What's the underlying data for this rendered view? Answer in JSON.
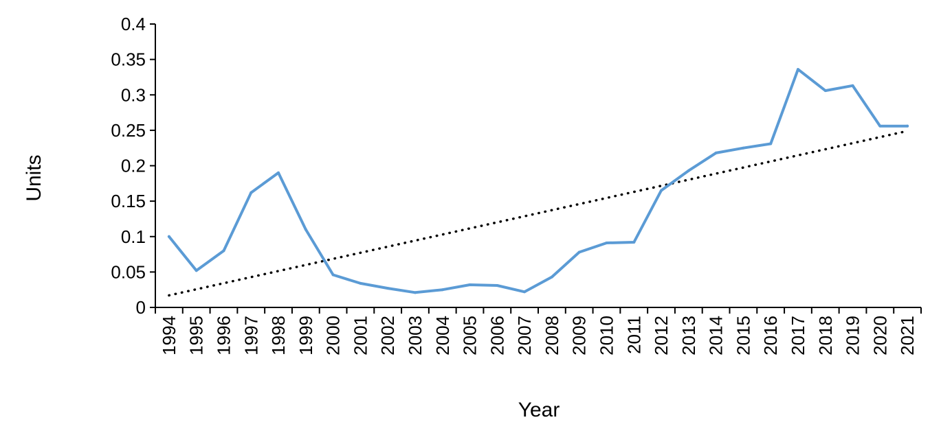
{
  "chart_data": {
    "type": "line",
    "title": "",
    "xlabel": "Year",
    "ylabel": "Units",
    "ylim": [
      0,
      0.4
    ],
    "yticks": [
      0,
      0.05,
      0.1,
      0.15,
      0.2,
      0.25,
      0.3,
      0.35,
      0.4
    ],
    "ytick_labels": [
      "0",
      "0.05",
      "0.1",
      "0.15",
      "0.2",
      "0.25",
      "0.3",
      "0.35",
      "0.4"
    ],
    "grid": false,
    "legend": "none",
    "categories": [
      "1994",
      "1995",
      "1996",
      "1997",
      "1998",
      "1999",
      "2000",
      "2001",
      "2002",
      "2003",
      "2004",
      "2005",
      "2006",
      "2007",
      "2008",
      "2009",
      "2010",
      "2011",
      "2012",
      "2013",
      "2014",
      "2015",
      "2016",
      "2017",
      "2018",
      "2019",
      "2020",
      "2021"
    ],
    "series": [
      {
        "name": "Units",
        "color": "#5b9bd5",
        "values": [
          0.1,
          0.052,
          0.08,
          0.162,
          0.19,
          0.11,
          0.046,
          0.034,
          0.027,
          0.021,
          0.025,
          0.032,
          0.031,
          0.022,
          0.043,
          0.078,
          0.091,
          0.092,
          0.165,
          0.193,
          0.218,
          0.225,
          0.231,
          0.336,
          0.306,
          0.313,
          0.256,
          0.256
        ]
      }
    ],
    "trendline": {
      "name": "Linear trend",
      "color": "#000000",
      "style": "dotted",
      "start": 0.017,
      "end": 0.249
    }
  }
}
